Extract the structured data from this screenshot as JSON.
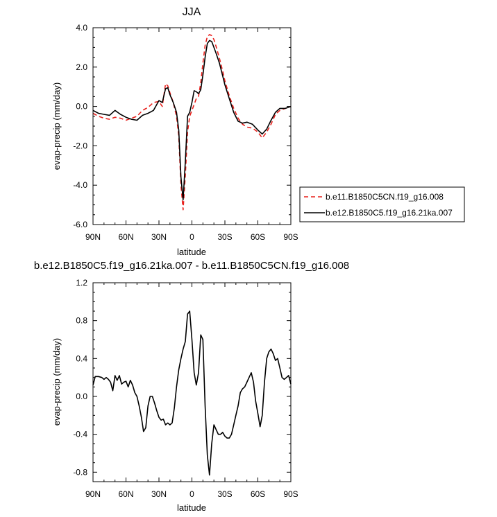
{
  "chart_data": [
    {
      "type": "line",
      "title": "JJA",
      "xlabel": "latitude",
      "ylabel": "evap-precip (mm/day)",
      "xlim": [
        90,
        -90
      ],
      "ylim": [
        -6.0,
        4.0
      ],
      "xticks": [
        {
          "value": 90,
          "label": "90N"
        },
        {
          "value": 60,
          "label": "60N"
        },
        {
          "value": 30,
          "label": "30N"
        },
        {
          "value": 0,
          "label": "0"
        },
        {
          "value": -30,
          "label": "30S"
        },
        {
          "value": -60,
          "label": "60S"
        },
        {
          "value": -90,
          "label": "90S"
        }
      ],
      "yticks": [
        {
          "value": 4,
          "label": "4.0"
        },
        {
          "value": 2,
          "label": "2.0"
        },
        {
          "value": 0,
          "label": "0.0"
        },
        {
          "value": -2,
          "label": "-2.0"
        },
        {
          "value": -4,
          "label": "-4.0"
        },
        {
          "value": -6,
          "label": "-6.0"
        }
      ],
      "legend_position": "right",
      "series": [
        {
          "name": "b.e11.B1850C5CN.f19_g16.008",
          "color": "#e8201c",
          "dash": "dashed",
          "x": [
            90,
            85,
            80,
            75,
            70,
            65,
            60,
            55,
            50,
            45,
            40,
            35,
            30,
            27,
            24,
            22,
            20,
            17,
            14,
            12,
            10,
            8,
            6,
            4,
            2,
            0,
            -2,
            -4,
            -6,
            -8,
            -10,
            -12,
            -14,
            -16,
            -18,
            -20,
            -22,
            -25,
            -28,
            -30,
            -34,
            -38,
            -42,
            -46,
            -50,
            -55,
            -60,
            -64,
            -68,
            -72,
            -76,
            -80,
            -85,
            -90
          ],
          "y": [
            -0.35,
            -0.5,
            -0.6,
            -0.65,
            -0.55,
            -0.6,
            -0.7,
            -0.6,
            -0.5,
            -0.2,
            -0.05,
            0.2,
            0.25,
            0.0,
            1.15,
            1.05,
            0.7,
            0.2,
            -0.5,
            -1.5,
            -4.0,
            -5.25,
            -3.5,
            -1.3,
            -0.5,
            -0.2,
            0.1,
            0.4,
            0.5,
            1.2,
            2.2,
            3.1,
            3.55,
            3.65,
            3.6,
            3.4,
            3.05,
            2.45,
            1.8,
            1.3,
            0.55,
            -0.1,
            -0.6,
            -0.9,
            -1.05,
            -1.1,
            -1.3,
            -1.6,
            -1.3,
            -0.9,
            -0.4,
            -0.2,
            -0.1,
            0.0
          ]
        },
        {
          "name": "b.e12.B1850C5.f19_g16.21ka.007",
          "color": "#000000",
          "dash": "solid",
          "x": [
            90,
            85,
            80,
            75,
            70,
            65,
            60,
            55,
            50,
            45,
            40,
            35,
            30,
            27,
            24,
            22,
            20,
            17,
            14,
            12,
            10,
            8,
            6,
            4,
            2,
            0,
            -2,
            -4,
            -6,
            -8,
            -10,
            -12,
            -14,
            -16,
            -18,
            -20,
            -22,
            -25,
            -28,
            -30,
            -34,
            -38,
            -42,
            -46,
            -50,
            -55,
            -60,
            -64,
            -68,
            -72,
            -76,
            -80,
            -85,
            -90
          ],
          "y": [
            -0.2,
            -0.35,
            -0.4,
            -0.45,
            -0.2,
            -0.4,
            -0.55,
            -0.65,
            -0.7,
            -0.45,
            -0.35,
            -0.2,
            0.3,
            0.2,
            0.9,
            0.95,
            0.6,
            0.2,
            -0.3,
            -1.2,
            -3.6,
            -4.75,
            -2.8,
            -0.5,
            -0.3,
            0.2,
            0.8,
            0.75,
            0.65,
            0.85,
            1.6,
            2.5,
            3.2,
            3.35,
            3.3,
            3.0,
            2.7,
            2.2,
            1.55,
            1.1,
            0.4,
            -0.3,
            -0.75,
            -0.85,
            -0.8,
            -0.9,
            -1.2,
            -1.4,
            -1.15,
            -0.7,
            -0.3,
            -0.1,
            -0.1,
            0.0
          ]
        }
      ]
    },
    {
      "type": "line",
      "title": "b.e12.B1850C5.f19_g16.21ka.007 - b.e11.B1850C5CN.f19_g16.008",
      "xlabel": "latitude",
      "ylabel": "evap-precip (mm/day)",
      "xlim": [
        90,
        -90
      ],
      "ylim": [
        -0.9,
        1.2
      ],
      "xticks": [
        {
          "value": 90,
          "label": "90N"
        },
        {
          "value": 60,
          "label": "60N"
        },
        {
          "value": 30,
          "label": "30N"
        },
        {
          "value": 0,
          "label": "0"
        },
        {
          "value": -30,
          "label": "30S"
        },
        {
          "value": -60,
          "label": "60S"
        },
        {
          "value": -90,
          "label": "90S"
        }
      ],
      "yticks": [
        {
          "value": 1.2,
          "label": "1.2"
        },
        {
          "value": 0.8,
          "label": "0.8"
        },
        {
          "value": 0.4,
          "label": "0.4"
        },
        {
          "value": 0.0,
          "label": "0.0"
        },
        {
          "value": -0.4,
          "label": "-0.4"
        },
        {
          "value": -0.8,
          "label": "-0.8"
        }
      ],
      "series": [
        {
          "color": "#000000",
          "dash": "solid",
          "x": [
            90,
            88,
            85,
            82,
            80,
            78,
            76,
            74,
            72,
            70,
            68,
            66,
            64,
            62,
            60,
            58,
            56,
            54,
            52,
            50,
            48,
            46,
            44,
            42,
            40,
            38,
            36,
            34,
            32,
            30,
            28,
            26,
            24,
            22,
            20,
            18,
            16,
            14,
            12,
            10,
            8,
            6,
            4,
            2,
            0,
            -2,
            -4,
            -6,
            -8,
            -10,
            -12,
            -14,
            -16,
            -18,
            -20,
            -22,
            -24,
            -26,
            -28,
            -30,
            -32,
            -34,
            -36,
            -38,
            -40,
            -42,
            -44,
            -46,
            -48,
            -50,
            -52,
            -54,
            -56,
            -58,
            -60,
            -62,
            -64,
            -66,
            -68,
            -70,
            -72,
            -74,
            -76,
            -78,
            -80,
            -82,
            -84,
            -86,
            -88,
            -90
          ],
          "y": [
            0.12,
            0.21,
            0.21,
            0.2,
            0.18,
            0.2,
            0.18,
            0.15,
            0.06,
            0.22,
            0.17,
            0.22,
            0.13,
            0.15,
            0.16,
            0.1,
            0.17,
            0.12,
            0.04,
            0.0,
            -0.1,
            -0.22,
            -0.37,
            -0.33,
            -0.1,
            0.0,
            0.0,
            -0.07,
            -0.15,
            -0.22,
            -0.25,
            -0.24,
            -0.3,
            -0.28,
            -0.3,
            -0.28,
            -0.12,
            0.1,
            0.28,
            0.4,
            0.5,
            0.58,
            0.87,
            0.9,
            0.6,
            0.25,
            0.12,
            0.25,
            0.65,
            0.6,
            -0.1,
            -0.62,
            -0.83,
            -0.5,
            -0.3,
            -0.35,
            -0.4,
            -0.4,
            -0.38,
            -0.42,
            -0.44,
            -0.44,
            -0.4,
            -0.3,
            -0.2,
            -0.1,
            0.04,
            0.08,
            0.1,
            0.15,
            0.2,
            0.25,
            0.15,
            -0.05,
            -0.18,
            -0.32,
            -0.2,
            0.15,
            0.4,
            0.47,
            0.5,
            0.45,
            0.38,
            0.4,
            0.3,
            0.2,
            0.18,
            0.2,
            0.22,
            0.13
          ]
        }
      ]
    }
  ]
}
